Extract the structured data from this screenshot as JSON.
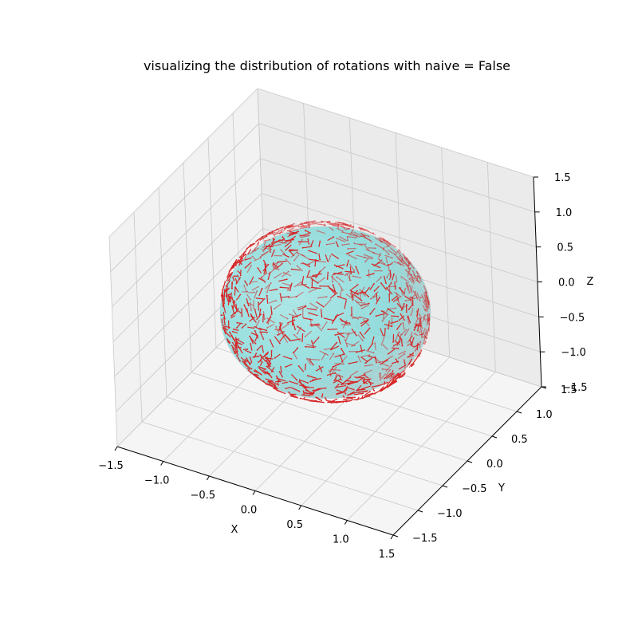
{
  "chart_data": {
    "type": "scatter",
    "projection": "3d",
    "title": "visualizing the distribution of rotations with naive = False",
    "xlabel": "X",
    "ylabel": "Y",
    "zlabel": "Z",
    "xlim": [
      -1.5,
      1.5
    ],
    "ylim": [
      -1.5,
      1.5
    ],
    "zlim": [
      -1.5,
      1.5
    ],
    "xticks": [
      "−1.5",
      "−1.0",
      "−0.5",
      "0.0",
      "0.5",
      "1.0",
      "1.5"
    ],
    "yticks": [
      "−1.5",
      "−1.0",
      "−0.5",
      "0.0",
      "0.5",
      "1.0",
      "1.5"
    ],
    "zticks": [
      "−1.5",
      "−1.0",
      "−0.5",
      "0.0",
      "0.5",
      "1.0",
      "1.5"
    ],
    "tick_values": [
      -1.5,
      -1.0,
      -0.5,
      0.0,
      0.5,
      1.0,
      1.5
    ],
    "grid": true,
    "sphere": {
      "center": [
        0,
        0,
        0
      ],
      "radius": 1.0,
      "color": "#7fd8d8",
      "opacity": 0.65
    },
    "markers": {
      "description": "short arrows on the unit-sphere surface, uniformly distributed",
      "approx_count": 1000,
      "color": "#d62728"
    }
  },
  "colors": {
    "pane_back": "#ebebeb",
    "pane_side": "#f2f2f2",
    "pane_floor": "#f5f5f5",
    "grid": "#c8c8c8",
    "axis": "#000000"
  }
}
